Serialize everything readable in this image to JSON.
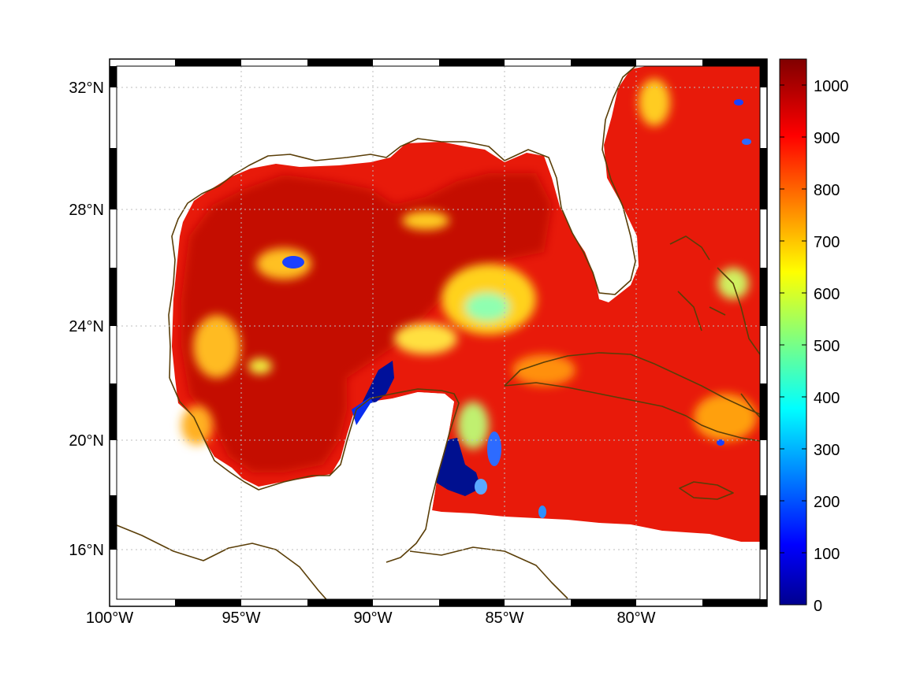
{
  "map": {
    "lon_range_deg": [
      -100,
      -75
    ],
    "lat_range_deg": [
      14.3,
      33.0
    ],
    "x_tick_labels": [
      "100°W",
      "95°W",
      "90°W",
      "85°W",
      "80°W"
    ],
    "x_tick_values": [
      -100,
      -95,
      -90,
      -85,
      -80
    ],
    "y_tick_labels": [
      "16°N",
      "20°N",
      "24°N",
      "28°N",
      "32°N"
    ],
    "y_tick_values": [
      16,
      20,
      24,
      28,
      32
    ],
    "grid": "dotted",
    "coastline_color": "#5a3e08",
    "land_color": "#ffffff",
    "frame": "black-white checkered border"
  },
  "colorbar": {
    "range": [
      0,
      1050
    ],
    "tick_labels": [
      "0",
      "100",
      "200",
      "300",
      "400",
      "500",
      "600",
      "700",
      "800",
      "900",
      "1000"
    ],
    "tick_values": [
      0,
      100,
      200,
      300,
      400,
      500,
      600,
      700,
      800,
      900,
      1000
    ],
    "colormap": "jet",
    "colormap_stops": [
      "#00008f",
      "#0000ff",
      "#00ffff",
      "#ffff00",
      "#ff0000",
      "#800000"
    ]
  }
}
